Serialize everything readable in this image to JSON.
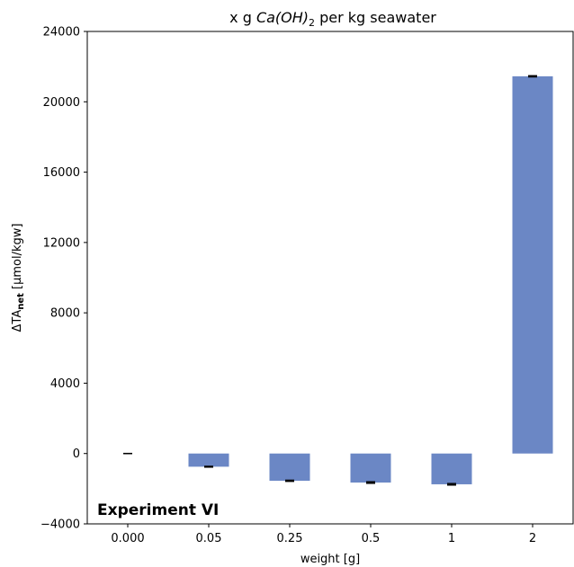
{
  "chart_data": {
    "type": "bar",
    "title_prefix": "x g ",
    "title_formula": "Ca(OH)",
    "title_subscript": "2",
    "title_suffix": " per kg seawater",
    "xlabel": "weight [g]",
    "ylabel_main": "ΔTA",
    "ylabel_sub": "net",
    "ylabel_unit": " [µmol/kgw]",
    "annotation": "Experiment VI",
    "categories": [
      "0.000",
      "0.05",
      "0.25",
      "0.5",
      "1",
      "2"
    ],
    "values": [
      0,
      -750,
      -1550,
      -1650,
      -1750,
      21450
    ],
    "errors": [
      0,
      20,
      30,
      40,
      40,
      30
    ],
    "ylim": [
      -4000,
      24000
    ],
    "yticks": [
      -4000,
      0,
      4000,
      8000,
      12000,
      16000,
      20000,
      24000
    ],
    "ytick_labels": [
      "−4000",
      "0",
      "4000",
      "8000",
      "12000",
      "16000",
      "20000",
      "24000"
    ],
    "bar_color": "#6b87c5",
    "grid": false,
    "legend": "none"
  }
}
